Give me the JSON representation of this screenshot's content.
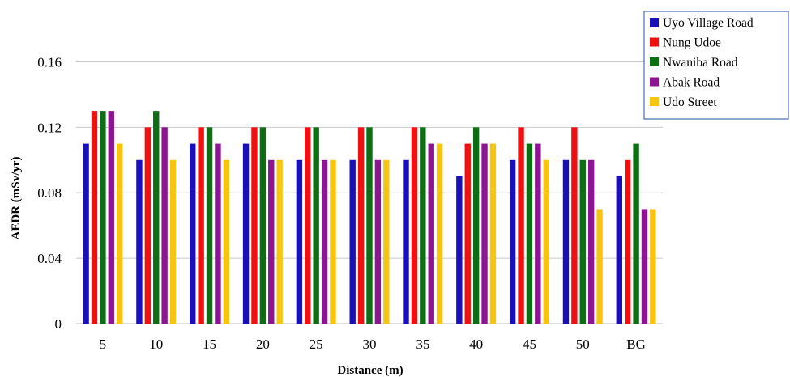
{
  "chart_data": {
    "type": "bar",
    "xlabel": "Distance (m)",
    "ylabel": "AEDR (mSv/yr)",
    "categories": [
      "5",
      "10",
      "15",
      "20",
      "25",
      "30",
      "35",
      "40",
      "45",
      "50",
      "BG"
    ],
    "ylim": [
      0,
      0.18
    ],
    "yticks": [
      "0",
      "0.04",
      "0.08",
      "0.12",
      "0.16"
    ],
    "ytick_values": [
      0,
      0.04,
      0.08,
      0.12,
      0.16
    ],
    "grid": true,
    "legend_position": "top-right",
    "series": [
      {
        "name": "Uyo Village Road",
        "color": "#1a10b8",
        "values": [
          0.11,
          0.1,
          0.11,
          0.11,
          0.1,
          0.1,
          0.1,
          0.09,
          0.1,
          0.1,
          0.09
        ]
      },
      {
        "name": "Nung Udoe",
        "color": "#ee1111",
        "values": [
          0.13,
          0.12,
          0.12,
          0.12,
          0.12,
          0.12,
          0.12,
          0.11,
          0.12,
          0.12,
          0.1
        ]
      },
      {
        "name": "Nwaniba Road",
        "color": "#0e6e14",
        "values": [
          0.13,
          0.13,
          0.12,
          0.12,
          0.12,
          0.12,
          0.12,
          0.12,
          0.11,
          0.1,
          0.11
        ]
      },
      {
        "name": "Abak Road",
        "color": "#8c1591",
        "values": [
          0.13,
          0.12,
          0.11,
          0.1,
          0.1,
          0.1,
          0.11,
          0.11,
          0.11,
          0.1,
          0.07
        ]
      },
      {
        "name": "Udo Street",
        "color": "#f5c511",
        "values": [
          0.11,
          0.1,
          0.1,
          0.1,
          0.1,
          0.1,
          0.11,
          0.11,
          0.1,
          0.07,
          0.07
        ]
      }
    ]
  }
}
